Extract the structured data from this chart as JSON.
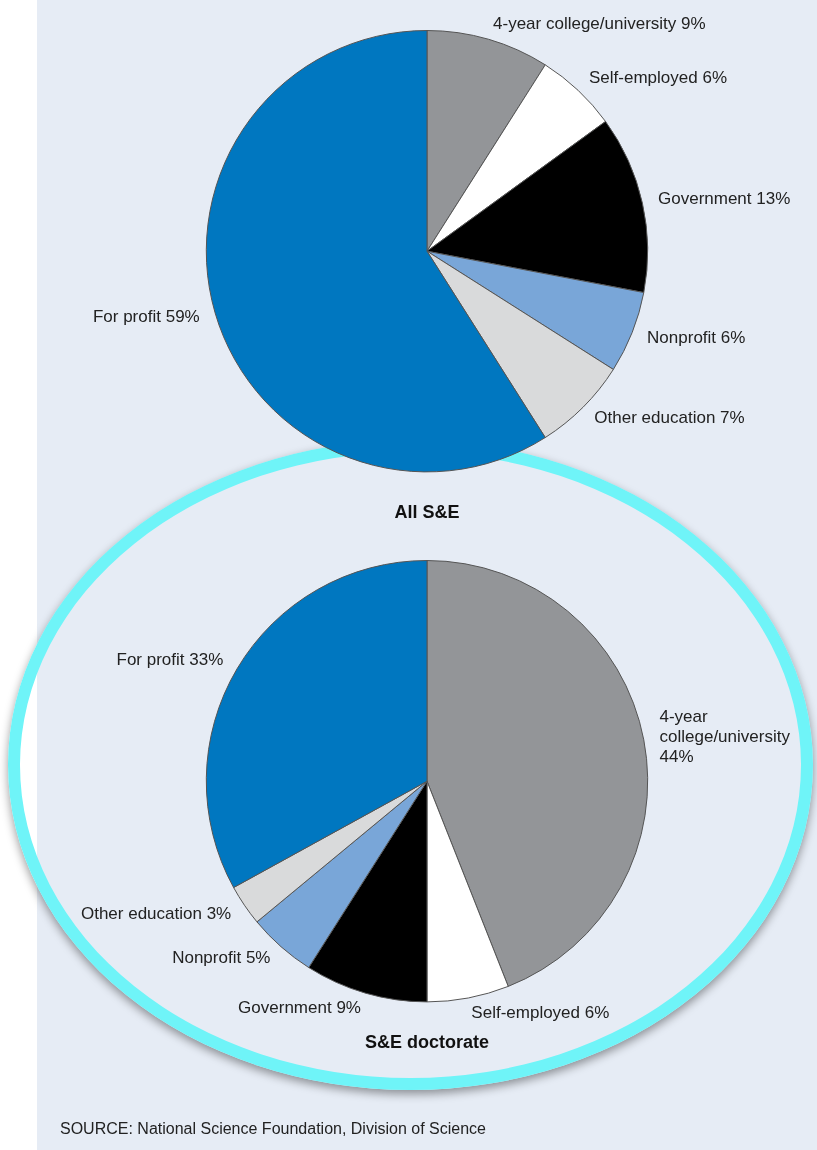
{
  "chart_data": [
    {
      "type": "pie",
      "title": "All S&E",
      "categories": [
        "4-year college/university",
        "Self-employed",
        "Government",
        "Nonprofit",
        "Other education",
        "For profit"
      ],
      "values": [
        9,
        6,
        13,
        6,
        7,
        59
      ],
      "value_labels": [
        "9%",
        "6%",
        "13%",
        "6%",
        "7%",
        "59%"
      ],
      "colors": [
        "#939598",
        "#ffffff",
        "#000000",
        "#79a6d8",
        "#d9dadb",
        "#0077c0"
      ],
      "legend": false
    },
    {
      "type": "pie",
      "title": "S&E doctorate",
      "categories": [
        "4-year college/university",
        "Self-employed",
        "Government",
        "Nonprofit",
        "Other education",
        "For profit"
      ],
      "values": [
        44,
        6,
        9,
        5,
        3,
        33
      ],
      "value_labels": [
        "44%",
        "6%",
        "9%",
        "5%",
        "3%",
        "33%"
      ],
      "colors": [
        "#939598",
        "#ffffff",
        "#000000",
        "#79a6d8",
        "#d9dadb",
        "#0077c0"
      ],
      "legend": false,
      "annotations": [
        "SOURCE: National Science Foundation, Division of Science"
      ]
    }
  ]
}
